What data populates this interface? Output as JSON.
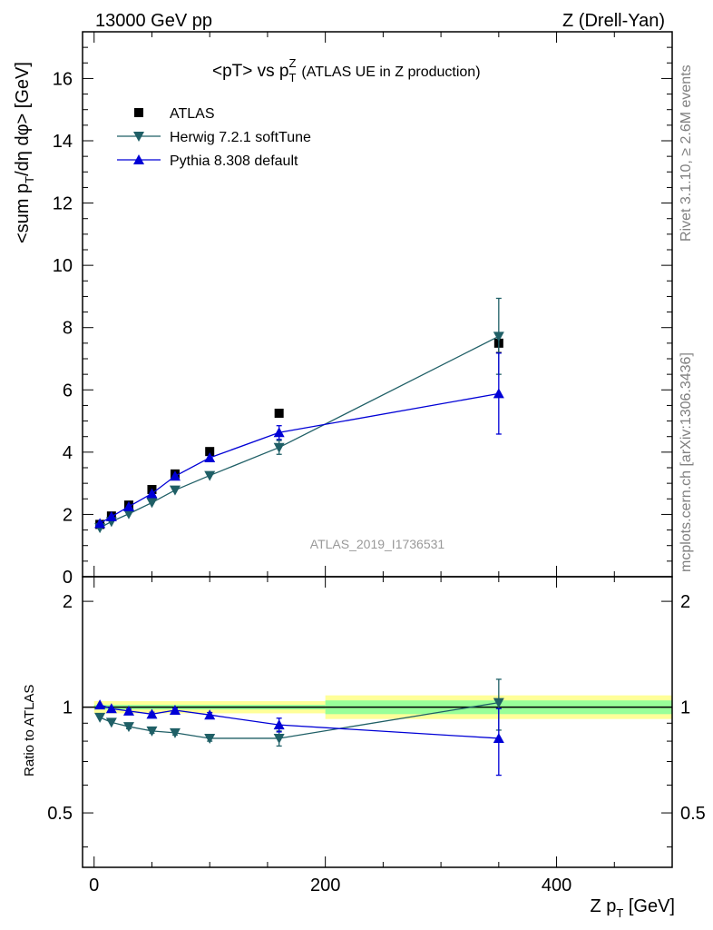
{
  "header": {
    "left": "13000 GeV pp",
    "right": "Z (Drell-Yan)"
  },
  "side": {
    "rivet": "Rivet 3.1.10, ≥ 2.6M events",
    "mcplots": "mcplots.cern.ch [arXiv:1306.3436]"
  },
  "chart_data": {
    "type": "scatter",
    "title": {
      "main": "<pT> vs p",
      "sup": "Z",
      "sub": "T",
      "paren": "(ATLAS UE in Z production)"
    },
    "watermark": "ATLAS_2019_I1736531",
    "xlabel": {
      "main": "Z p",
      "sub": "T",
      "unit": " [GeV]"
    },
    "ylabel": {
      "pre": "<sum p",
      "sub": "T",
      "post": "/dη dφ> [GeV]"
    },
    "ratio_ylabel": "Ratio to ATLAS",
    "xlim": [
      -10,
      500
    ],
    "ylim": [
      0,
      17.5
    ],
    "ratio_ylim": [
      0.35,
      2.35
    ],
    "ratio_scale": "log",
    "x_ticks": [
      0,
      200,
      400
    ],
    "x_tick_labels": [
      "0",
      "200",
      "400"
    ],
    "y_ticks": [
      0,
      2,
      4,
      6,
      8,
      10,
      12,
      14,
      16
    ],
    "y_tick_labels": [
      "0",
      "2",
      "4",
      "6",
      "8",
      "10",
      "12",
      "14",
      "16"
    ],
    "ratio_ticks": [
      0.5,
      1,
      2
    ],
    "ratio_tick_labels": [
      "0.5",
      "1",
      "2"
    ],
    "legend_position": "top-left",
    "series": [
      {
        "name": "ATLAS",
        "color": "#000000",
        "marker": "square",
        "x": [
          5,
          15,
          30,
          50,
          70,
          100,
          160,
          350
        ],
        "y": [
          1.68,
          1.95,
          2.3,
          2.8,
          3.3,
          4.02,
          5.25,
          7.5
        ],
        "yerr": [
          0.02,
          0.02,
          0.03,
          0.04,
          0.05,
          0.06,
          0.1,
          0.3
        ]
      },
      {
        "name": "Herwig 7.2.1 softTune",
        "color": "#1f5f66",
        "marker": "triangle-down",
        "x": [
          5,
          15,
          30,
          50,
          70,
          100,
          160,
          350
        ],
        "y": [
          1.57,
          1.77,
          2.02,
          2.38,
          2.78,
          3.25,
          4.15,
          7.72
        ],
        "yerr": [
          0.02,
          0.02,
          0.03,
          0.04,
          0.05,
          0.07,
          0.22,
          1.22
        ],
        "ratio": [
          0.935,
          0.905,
          0.88,
          0.855,
          0.845,
          0.815,
          0.815,
          1.03
        ],
        "ratio_err": [
          0.01,
          0.01,
          0.012,
          0.012,
          0.012,
          0.015,
          0.04,
          0.17
        ]
      },
      {
        "name": "Pythia 8.308 default",
        "color": "#0000d6",
        "marker": "triangle-up",
        "x": [
          5,
          15,
          30,
          50,
          70,
          100,
          160,
          350
        ],
        "y": [
          1.71,
          1.93,
          2.25,
          2.67,
          3.23,
          3.82,
          4.63,
          5.88
        ],
        "yerr": [
          0.02,
          0.02,
          0.03,
          0.04,
          0.05,
          0.07,
          0.22,
          1.3
        ],
        "ratio": [
          1.015,
          0.99,
          0.975,
          0.955,
          0.98,
          0.95,
          0.89,
          0.815
        ],
        "ratio_err": [
          0.01,
          0.01,
          0.012,
          0.012,
          0.012,
          0.015,
          0.04,
          0.175
        ]
      }
    ],
    "ratio_bands": [
      {
        "x0": 0,
        "x1": 200,
        "inner": [
          0.985,
          1.015
        ],
        "outer": [
          0.96,
          1.04
        ]
      },
      {
        "x0": 200,
        "x1": 500,
        "inner": [
          0.955,
          1.045
        ],
        "outer": [
          0.925,
          1.08
        ]
      }
    ],
    "band_colors": {
      "inner": "#99ff99",
      "outer": "#ffff99"
    }
  }
}
